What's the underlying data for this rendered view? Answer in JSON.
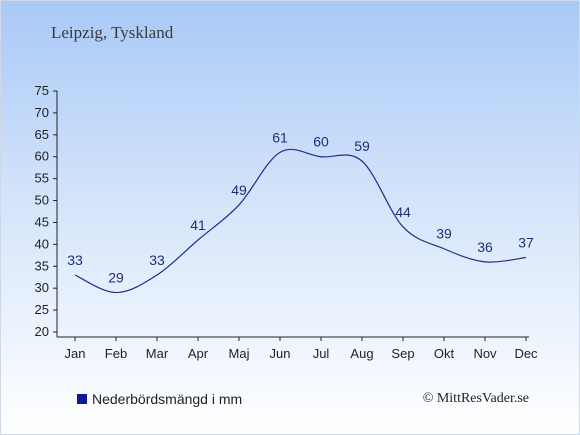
{
  "location": "Leipzig, Tyskland",
  "legend_label": "Nederbördsmängd i mm",
  "copyright": "© MittResVader.se",
  "colors": {
    "line": "#1f2f8a",
    "legend": "#0a1a9b"
  },
  "chart_data": {
    "type": "line",
    "categories": [
      "Jan",
      "Feb",
      "Mar",
      "Apr",
      "Maj",
      "Jun",
      "Jul",
      "Aug",
      "Sep",
      "Okt",
      "Nov",
      "Dec"
    ],
    "series": [
      {
        "values": [
          33,
          29,
          33,
          41,
          49,
          61,
          60,
          59,
          44,
          39,
          36,
          37
        ]
      }
    ],
    "ylim": [
      20,
      75
    ],
    "yticks": [
      20,
      25,
      30,
      35,
      40,
      45,
      50,
      55,
      60,
      65,
      70,
      75
    ],
    "title": "",
    "xlabel": "",
    "ylabel": "",
    "grid": false,
    "legend_position": "bottom-left"
  }
}
